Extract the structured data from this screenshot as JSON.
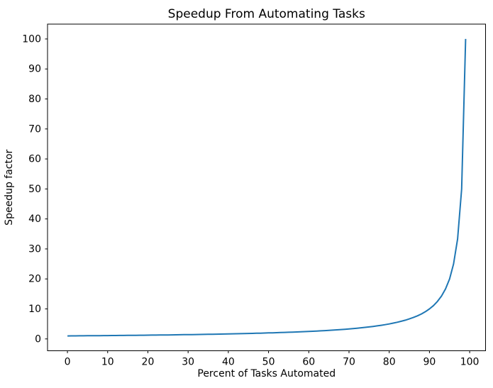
{
  "chart_data": {
    "type": "line",
    "title": "Speedup From Automating Tasks",
    "xlabel": "Percent of Tasks Automated",
    "ylabel": "Speedup factor",
    "grid": false,
    "legend_position": "none",
    "line_color": "#1f77b4",
    "xlim": [
      -4.95,
      103.95
    ],
    "ylim": [
      -3.95,
      104.95
    ],
    "xticks": [
      0,
      10,
      20,
      30,
      40,
      50,
      60,
      70,
      80,
      90,
      100
    ],
    "yticks": [
      0,
      10,
      20,
      30,
      40,
      50,
      60,
      70,
      80,
      90,
      100
    ],
    "x": [
      0,
      1,
      2,
      3,
      4,
      5,
      6,
      7,
      8,
      9,
      10,
      11,
      12,
      13,
      14,
      15,
      16,
      17,
      18,
      19,
      20,
      21,
      22,
      23,
      24,
      25,
      26,
      27,
      28,
      29,
      30,
      31,
      32,
      33,
      34,
      35,
      36,
      37,
      38,
      39,
      40,
      41,
      42,
      43,
      44,
      45,
      46,
      47,
      48,
      49,
      50,
      51,
      52,
      53,
      54,
      55,
      56,
      57,
      58,
      59,
      60,
      61,
      62,
      63,
      64,
      65,
      66,
      67,
      68,
      69,
      70,
      71,
      72,
      73,
      74,
      75,
      76,
      77,
      78,
      79,
      80,
      81,
      82,
      83,
      84,
      85,
      86,
      87,
      88,
      89,
      90,
      91,
      92,
      93,
      94,
      95,
      96,
      97,
      98,
      99
    ],
    "y": [
      1.0,
      1.0101,
      1.0204,
      1.0309,
      1.0417,
      1.0526,
      1.0638,
      1.0753,
      1.087,
      1.0989,
      1.1111,
      1.1236,
      1.1364,
      1.1494,
      1.1628,
      1.1765,
      1.1905,
      1.2048,
      1.2195,
      1.2346,
      1.25,
      1.2658,
      1.2821,
      1.2987,
      1.3158,
      1.3333,
      1.3514,
      1.3699,
      1.3889,
      1.4085,
      1.4286,
      1.4493,
      1.4706,
      1.4925,
      1.5152,
      1.5385,
      1.5625,
      1.5873,
      1.6129,
      1.6393,
      1.6667,
      1.6949,
      1.7241,
      1.7544,
      1.7857,
      1.8182,
      1.8519,
      1.8868,
      1.9231,
      1.9608,
      2.0,
      2.0408,
      2.0833,
      2.1277,
      2.1739,
      2.2222,
      2.2727,
      2.3256,
      2.381,
      2.439,
      2.5,
      2.5641,
      2.6316,
      2.7027,
      2.7778,
      2.8571,
      2.9412,
      3.0303,
      3.125,
      3.2258,
      3.3333,
      3.4483,
      3.5714,
      3.7037,
      3.8462,
      4.0,
      4.1667,
      4.3478,
      4.5455,
      4.7619,
      5.0,
      5.2632,
      5.5556,
      5.8824,
      6.25,
      6.6667,
      7.1429,
      7.6923,
      8.3333,
      9.0909,
      10.0,
      11.1111,
      12.5,
      14.2857,
      16.6667,
      20.0,
      25.0,
      33.3333,
      50.0,
      100.0
    ]
  }
}
